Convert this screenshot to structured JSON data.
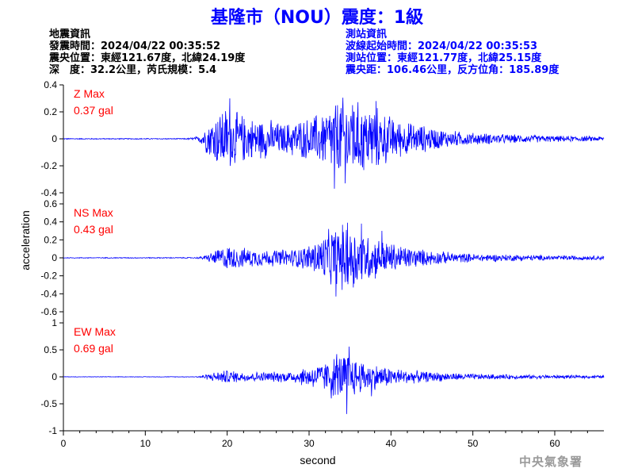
{
  "title": "基隆市（NOU）震度：1級",
  "event_info": {
    "heading": "地震資訊",
    "origin_time": "發震時間：2024/04/22 00:35:52",
    "epicenter": "震央位置：東經121.67度，北緯24.19度",
    "depth_magnitude": "深　度：32.2公里，芮氏規模：5.4"
  },
  "station_info": {
    "heading": "測站資訊",
    "wave_start_time": "波線起始時間：2024/04/22 00:35:53",
    "station_location": "測站位置：東經121.77度，北緯25.15度",
    "distance_azimuth": "震央距：106.46公里，反方位角：185.89度"
  },
  "watermark": "中央氣象署",
  "chart_data": {
    "type": "line",
    "xlabel": "second",
    "ylabel": "acceleration",
    "x_range": [
      0,
      66
    ],
    "x_ticks": [
      0,
      10,
      20,
      30,
      40,
      50,
      60
    ],
    "x_tick_labels": [
      "0",
      "10",
      "20",
      "30",
      "40",
      "50",
      "60"
    ],
    "series_color": "#0000ff",
    "label_color": "#ff0000",
    "panels": [
      {
        "component": "Z",
        "label": "Z Max",
        "max_label": "0.37 gal",
        "max": 0.37,
        "ylim": [
          -0.4,
          0.4
        ],
        "y_ticks": [
          0.4,
          0.2,
          0,
          -0.2,
          -0.4
        ],
        "y_tick_labels": [
          "0.4",
          "0.2",
          "0",
          "-0.2",
          "-0.4"
        ],
        "envelope": [
          [
            0,
            0.004
          ],
          [
            15,
            0.004
          ],
          [
            16.5,
            0.02
          ],
          [
            17.5,
            0.12
          ],
          [
            18.5,
            0.2
          ],
          [
            19.5,
            0.27
          ],
          [
            21,
            0.22
          ],
          [
            23,
            0.17
          ],
          [
            25,
            0.16
          ],
          [
            27,
            0.12
          ],
          [
            28,
            0.15
          ],
          [
            30,
            0.17
          ],
          [
            32,
            0.24
          ],
          [
            33,
            0.3
          ],
          [
            34,
            0.34
          ],
          [
            36,
            0.3
          ],
          [
            37,
            0.28
          ],
          [
            38,
            0.27
          ],
          [
            39,
            0.22
          ],
          [
            41,
            0.15
          ],
          [
            44,
            0.11
          ],
          [
            47,
            0.07
          ],
          [
            50,
            0.05
          ],
          [
            55,
            0.035
          ],
          [
            60,
            0.025
          ],
          [
            66,
            0.02
          ]
        ],
        "peaks": [
          [
            20.3,
            0.3
          ],
          [
            33.1,
            -0.37
          ],
          [
            34.4,
            -0.33
          ],
          [
            38.2,
            0.28
          ],
          [
            35.3,
            0.25
          ]
        ]
      },
      {
        "component": "NS",
        "label": "NS Max",
        "max_label": "0.43 gal",
        "max": 0.43,
        "ylim": [
          -0.6,
          0.6
        ],
        "y_ticks": [
          0.6,
          0.4,
          0.2,
          0,
          -0.2,
          -0.4,
          -0.6
        ],
        "y_tick_labels": [
          "0.6",
          "0.4",
          "0.2",
          "0",
          "-0.2",
          "-0.4",
          "-0.6"
        ],
        "envelope": [
          [
            0,
            0.005
          ],
          [
            16,
            0.006
          ],
          [
            17,
            0.02
          ],
          [
            18,
            0.06
          ],
          [
            19,
            0.12
          ],
          [
            20,
            0.15
          ],
          [
            22,
            0.12
          ],
          [
            25,
            0.1
          ],
          [
            28,
            0.11
          ],
          [
            30,
            0.16
          ],
          [
            32,
            0.3
          ],
          [
            33,
            0.38
          ],
          [
            34,
            0.41
          ],
          [
            36,
            0.36
          ],
          [
            37,
            0.3
          ],
          [
            39,
            0.22
          ],
          [
            41,
            0.16
          ],
          [
            44,
            0.1
          ],
          [
            47,
            0.07
          ],
          [
            50,
            0.05
          ],
          [
            55,
            0.04
          ],
          [
            60,
            0.03
          ],
          [
            66,
            0.025
          ]
        ],
        "peaks": [
          [
            33.3,
            -0.43
          ],
          [
            34.7,
            0.39
          ],
          [
            36.4,
            0.38
          ],
          [
            35.4,
            -0.33
          ],
          [
            38.9,
            0.3
          ]
        ]
      },
      {
        "component": "EW",
        "label": "EW Max",
        "max_label": "0.69 gal",
        "max": 0.69,
        "ylim": [
          -1,
          1
        ],
        "y_ticks": [
          1,
          0.5,
          0,
          -0.5,
          -1
        ],
        "y_tick_labels": [
          "1",
          "0.5",
          "0",
          "-0.5",
          "-1"
        ],
        "envelope": [
          [
            0,
            0.005
          ],
          [
            16,
            0.006
          ],
          [
            17,
            0.03
          ],
          [
            18,
            0.08
          ],
          [
            20,
            0.14
          ],
          [
            22,
            0.1
          ],
          [
            25,
            0.1
          ],
          [
            28,
            0.12
          ],
          [
            30,
            0.22
          ],
          [
            32,
            0.3
          ],
          [
            33,
            0.4
          ],
          [
            34.5,
            0.5
          ],
          [
            35.5,
            0.4
          ],
          [
            37,
            0.3
          ],
          [
            39,
            0.22
          ],
          [
            42,
            0.14
          ],
          [
            45,
            0.1
          ],
          [
            50,
            0.06
          ],
          [
            55,
            0.045
          ],
          [
            60,
            0.035
          ],
          [
            66,
            0.03
          ]
        ],
        "peaks": [
          [
            34.6,
            -0.69
          ],
          [
            34.9,
            0.56
          ],
          [
            33.4,
            0.42
          ],
          [
            32.7,
            -0.4
          ],
          [
            37.6,
            -0.36
          ]
        ]
      }
    ]
  }
}
